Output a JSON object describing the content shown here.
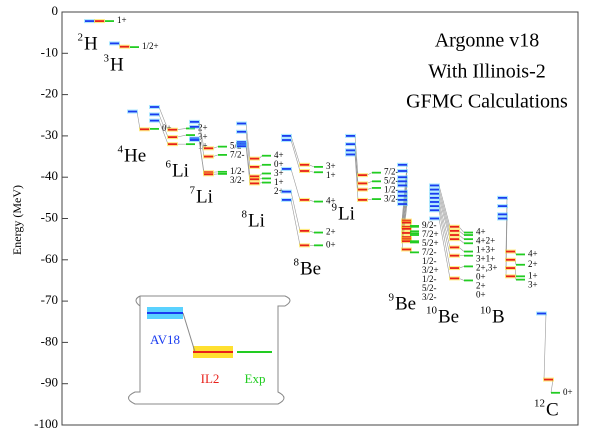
{
  "chart_data": {
    "type": "level",
    "title": [
      "Argonne v18",
      "With Illinois-2",
      "GFMC Calculations"
    ],
    "ylabel": "Energy (MeV)",
    "ylim": [
      -100,
      0
    ],
    "yticks": [
      0,
      -10,
      -20,
      -30,
      -40,
      -50,
      -60,
      -70,
      -80,
      -90,
      -100
    ],
    "series": [
      {
        "name": "AV18",
        "color": "#1a3cf0"
      },
      {
        "name": "IL2",
        "color": "#e8201a"
      },
      {
        "name": "Exp",
        "color": "#22cc22"
      }
    ],
    "nuclei": [
      {
        "mass": "2",
        "element": "H",
        "spins": [
          "1+"
        ],
        "av18": [
          -2.2
        ],
        "il2": [
          -2.2
        ],
        "exp": [
          -2.2
        ]
      },
      {
        "mass": "3",
        "element": "H",
        "spins": [
          "1/2+"
        ],
        "av18": [
          -7.6
        ],
        "il2": [
          -8.4
        ],
        "exp": [
          -8.5
        ]
      },
      {
        "mass": "4",
        "element": "He",
        "spins": [
          "0+"
        ],
        "av18": [
          -24.1
        ],
        "il2": [
          -28.4
        ],
        "exp": [
          -28.3
        ]
      },
      {
        "mass": "6",
        "element": "Li",
        "spins": [
          "2+",
          "3+",
          "1+"
        ],
        "av18": [
          -23,
          -24.8,
          -26.3
        ],
        "il2": [
          -28.5,
          -30.3,
          -32
        ],
        "exp": [
          -28.2,
          -29.8,
          -32
        ]
      },
      {
        "mass": "7",
        "element": "Li",
        "spins": [
          "5/2-",
          "7/2-",
          "1/2-",
          "3/2-"
        ],
        "av18": [
          -26.6,
          -27.8,
          -30.6,
          -31
        ],
        "il2": [
          -33,
          -35,
          -38.8,
          -39.3
        ],
        "exp": [
          -32.6,
          -34.6,
          -38.7,
          -39.2
        ]
      },
      {
        "mass": "8",
        "element": "Li",
        "spins": [
          "4+",
          "0+",
          "3+",
          "1+",
          "2+"
        ],
        "av18": [
          -27,
          -29,
          -31.5,
          -32,
          -32.5
        ],
        "il2": [
          -35.5,
          -37.5,
          -39.8,
          -40.5,
          -41.5
        ],
        "exp": [
          -34.8,
          -37,
          -39.1,
          -40.3,
          -41.3
        ]
      },
      {
        "mass": "8",
        "element": "Be",
        "spins": [
          "3+",
          "1+",
          "4+",
          "2+",
          "0+"
        ],
        "av18": [
          -30,
          -31,
          -38,
          -43.5,
          -45.5
        ],
        "il2": [
          -37,
          -38.5,
          -45.5,
          -53,
          -56.5
        ],
        "exp": [
          -37.5,
          -38.8,
          -45.9,
          -53.4,
          -56.5
        ]
      },
      {
        "mass": "9",
        "element": "Li",
        "spins": [
          "7/2-",
          "5/2-",
          "1/2-",
          "3/2-"
        ],
        "av18": [
          -30,
          -32,
          -33.5,
          -34.5
        ],
        "il2": [
          -39.5,
          -41.5,
          -43,
          -45.5
        ],
        "exp": [
          -38.9,
          -41,
          -42.6,
          -45.3
        ]
      },
      {
        "mass": "9",
        "element": "Be",
        "spins": [
          "9/2-",
          "7/2+",
          "5/2+",
          "7/2-",
          "1/2-",
          "3/2+",
          "1/2-",
          "5/2-",
          "3/2-"
        ],
        "av18": [
          -37,
          -38.5,
          -40,
          -41,
          -42,
          -43.5,
          -44.5,
          -45.5,
          -46.5
        ],
        "il2": [
          -50.5,
          -51,
          -52,
          -52.5,
          -53.5,
          -54.5,
          -55,
          -55.5,
          -57.5
        ],
        "exp": [
          -51.8,
          -52,
          -53.1,
          -53.6,
          -54,
          -55.5,
          -55.6,
          -55.8,
          -58.2
        ]
      },
      {
        "mass": "10",
        "element": "Be",
        "spins": [
          "4+",
          "4+2+",
          "1+3+",
          "3+1+",
          "2+,3+",
          "0+",
          "2+",
          "0+"
        ],
        "av18": [
          -42,
          -43,
          -44,
          -45,
          -46,
          -47,
          -48,
          -50
        ],
        "il2": [
          -52,
          -53,
          -54,
          -55,
          -57,
          -59,
          -62,
          -64.5
        ],
        "exp": [
          -53.4,
          -54,
          -55,
          -56,
          -58,
          -59,
          -61.6,
          -65
        ]
      },
      {
        "mass": "10",
        "element": "B",
        "spins": [
          "4+",
          "2+",
          "1+",
          "3+"
        ],
        "av18": [
          -45,
          -47,
          -49,
          -50
        ],
        "il2": [
          -58,
          -60,
          -62,
          -64
        ],
        "exp": [
          -58.7,
          -61.2,
          -64,
          -64.8
        ]
      },
      {
        "mass": "12",
        "element": "C",
        "spins": [
          "0+"
        ],
        "av18": [
          -73
        ],
        "il2": [
          -89
        ],
        "exp": [
          -92.2
        ]
      }
    ]
  }
}
